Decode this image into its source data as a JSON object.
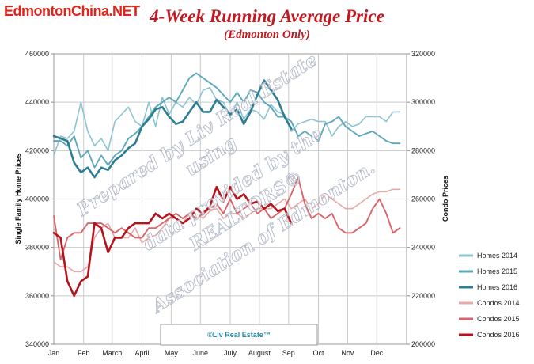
{
  "header": {
    "site_logo": "EdmontonChina.NET",
    "title": "4-Week Running Average Price",
    "subtitle": "(Edmonton Only)"
  },
  "watermark": {
    "lines": [
      "Prepared by Liv Real Estate",
      "using",
      "data provided by the",
      "REALTORS®",
      "Association of Edmonton."
    ]
  },
  "credit": "©Liv Real Estate™",
  "chart_data": {
    "type": "line",
    "title": "4-Week Running Average Price",
    "subtitle": "(Edmonton Only)",
    "xlabel": "",
    "ylabel_left": "Single Family Home Prices",
    "ylabel_right": "Condo Prices",
    "x_tick_labels": [
      "Jan",
      "Feb",
      "March",
      "April",
      "May",
      "June",
      "July",
      "August",
      "Sep",
      "Oct",
      "Nov",
      "Dec"
    ],
    "x_tick_weeks": [
      0,
      4.4,
      8.6,
      13,
      17.3,
      21.6,
      26,
      30.3,
      34.6,
      39,
      43.3,
      47.6
    ],
    "x_unit": "week of year",
    "xlim": [
      0,
      52
    ],
    "ylim_left": [
      340000,
      460000
    ],
    "yticks_left": [
      340000,
      360000,
      380000,
      400000,
      420000,
      440000,
      460000
    ],
    "ylim_right": [
      200000,
      320000
    ],
    "yticks_right": [
      200000,
      220000,
      240000,
      260000,
      280000,
      300000,
      320000
    ],
    "grid": true,
    "legend_position": "bottom-right",
    "colors": {
      "Homes 2014": "#8cc4d2",
      "Homes 2015": "#5ea8bc",
      "Homes 2016": "#2f7d93",
      "Condos 2014": "#e9a8a8",
      "Condos 2015": "#d9656b",
      "Condos 2016": "#b5121b"
    },
    "series": [
      {
        "name": "Homes 2014",
        "axis": "left",
        "x": [
          0,
          1,
          2,
          3,
          4,
          5,
          6,
          7,
          8,
          9,
          10,
          11,
          12,
          13,
          14,
          15,
          16,
          17,
          18,
          19,
          20,
          21,
          22,
          23,
          24,
          25,
          26,
          27,
          28,
          29,
          30,
          31,
          32,
          33,
          34,
          35,
          36,
          37,
          38,
          39,
          40,
          41,
          42,
          43,
          44,
          45,
          46,
          47,
          48,
          49,
          50,
          51
        ],
        "y": [
          418000,
          426000,
          425000,
          428000,
          440000,
          428000,
          422000,
          425000,
          420000,
          432000,
          435000,
          438000,
          432000,
          430000,
          440000,
          430000,
          442000,
          435000,
          440000,
          438000,
          442000,
          439000,
          445000,
          446000,
          441000,
          440000,
          434000,
          440000,
          433000,
          437000,
          436000,
          433000,
          439000,
          436000,
          435000,
          428000,
          431000,
          432000,
          433000,
          432000,
          432000,
          426000,
          430000,
          432000,
          430000,
          431000,
          434000,
          434000,
          434000,
          432000,
          436000,
          436000
        ]
      },
      {
        "name": "Homes 2015",
        "axis": "left",
        "x": [
          0,
          1,
          2,
          3,
          4,
          5,
          6,
          7,
          8,
          9,
          10,
          11,
          12,
          13,
          14,
          15,
          16,
          17,
          18,
          19,
          20,
          21,
          22,
          23,
          24,
          25,
          26,
          27,
          28,
          29,
          30,
          31,
          32,
          33,
          34,
          35,
          36,
          37,
          38,
          39,
          40,
          41,
          42,
          43,
          44,
          45,
          46,
          47,
          48,
          49,
          50,
          51
        ],
        "y": [
          424000,
          424000,
          422000,
          426000,
          417000,
          420000,
          413000,
          418000,
          414000,
          418000,
          420000,
          425000,
          427000,
          430000,
          434000,
          438000,
          440000,
          442000,
          440000,
          445000,
          450000,
          452000,
          450000,
          448000,
          446000,
          443000,
          440000,
          444000,
          440000,
          445000,
          444000,
          440000,
          438000,
          434000,
          434000,
          432000,
          426000,
          428000,
          426000,
          424000,
          431000,
          432000,
          434000,
          430000,
          428000,
          426000,
          427000,
          428000,
          426000,
          424000,
          423000,
          423000
        ]
      },
      {
        "name": "Homes 2016",
        "axis": "left",
        "x": [
          0,
          1,
          2,
          3,
          4,
          5,
          6,
          7,
          8,
          9,
          10,
          11,
          12,
          13,
          14,
          15,
          16,
          17,
          18,
          19,
          20,
          21,
          22,
          23,
          24,
          25,
          26,
          27,
          28,
          29,
          30,
          31,
          32,
          33,
          34,
          35
        ],
        "y": [
          426000,
          425000,
          424000,
          415000,
          411000,
          413000,
          409000,
          413000,
          412000,
          416000,
          418000,
          421000,
          423000,
          430000,
          433000,
          437000,
          438000,
          434000,
          431000,
          432000,
          436000,
          440000,
          436000,
          436000,
          441000,
          438000,
          435000,
          437000,
          431000,
          436000,
          443000,
          449000,
          445000,
          441000,
          434000,
          429000
        ]
      },
      {
        "name": "Condos 2014",
        "axis": "right",
        "x": [
          0,
          1,
          2,
          3,
          4,
          5,
          6,
          7,
          8,
          9,
          10,
          11,
          12,
          13,
          14,
          15,
          16,
          17,
          18,
          19,
          20,
          21,
          22,
          23,
          24,
          25,
          26,
          27,
          28,
          29,
          30,
          31,
          32,
          33,
          34,
          35,
          36,
          37,
          38,
          39,
          40,
          41,
          42,
          43,
          44,
          45,
          46,
          47,
          48,
          49,
          50,
          51
        ],
        "y": [
          234000,
          232000,
          232000,
          230000,
          230000,
          232000,
          244000,
          248000,
          250000,
          244000,
          244000,
          244000,
          248000,
          242000,
          244000,
          245000,
          248000,
          252000,
          252000,
          250000,
          254000,
          254000,
          252000,
          255000,
          256000,
          252000,
          254000,
          254000,
          252000,
          254000,
          256000,
          256000,
          256000,
          258000,
          260000,
          256000,
          258000,
          260000,
          256000,
          258000,
          262000,
          260000,
          258000,
          256000,
          256000,
          258000,
          260000,
          262000,
          263000,
          263000,
          264000,
          264000
        ]
      },
      {
        "name": "Condos 2015",
        "axis": "right",
        "x": [
          0,
          1,
          2,
          3,
          4,
          5,
          6,
          7,
          8,
          9,
          10,
          11,
          12,
          13,
          14,
          15,
          16,
          17,
          18,
          19,
          20,
          21,
          22,
          23,
          24,
          25,
          26,
          27,
          28,
          29,
          30,
          31,
          32,
          33,
          34,
          35,
          36,
          37,
          38,
          39,
          40,
          41,
          42,
          43,
          44,
          45,
          46,
          47,
          48,
          49,
          50,
          51
        ],
        "y": [
          253000,
          235000,
          244000,
          246000,
          246000,
          250000,
          250000,
          250000,
          248000,
          246000,
          248000,
          246000,
          244000,
          244000,
          248000,
          248000,
          250000,
          252000,
          254000,
          252000,
          254000,
          252000,
          254000,
          256000,
          258000,
          254000,
          260000,
          254000,
          256000,
          258000,
          254000,
          256000,
          252000,
          254000,
          256000,
          262000,
          269000,
          258000,
          252000,
          254000,
          252000,
          254000,
          248000,
          246000,
          246000,
          248000,
          250000,
          256000,
          260000,
          254000,
          246000,
          248000
        ]
      },
      {
        "name": "Condos 2016",
        "axis": "right",
        "x": [
          0,
          1,
          2,
          3,
          4,
          5,
          6,
          7,
          8,
          9,
          10,
          11,
          12,
          13,
          14,
          15,
          16,
          17,
          18,
          19,
          20,
          21,
          22,
          23,
          24,
          25,
          26,
          27,
          28,
          29,
          30,
          31,
          32,
          33,
          34,
          35
        ],
        "y": [
          246000,
          244000,
          226000,
          220000,
          226000,
          228000,
          250000,
          248000,
          238000,
          244000,
          244000,
          248000,
          250000,
          250000,
          250000,
          254000,
          252000,
          254000,
          252000,
          250000,
          252000,
          256000,
          254000,
          257000,
          265000,
          259000,
          265000,
          260000,
          262000,
          258000,
          259000,
          256000,
          258000,
          255000,
          256000,
          250000
        ]
      }
    ]
  }
}
